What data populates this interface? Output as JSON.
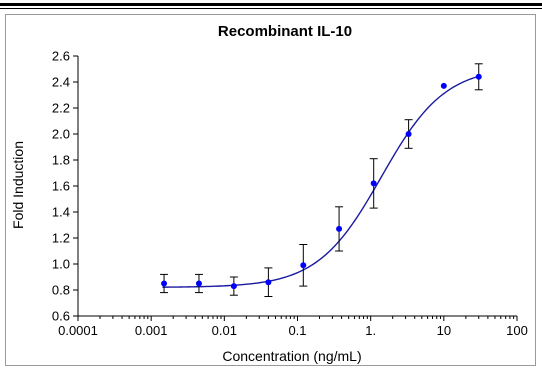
{
  "chart_data": {
    "type": "scatter",
    "title": "Recombinant IL-10",
    "xlabel": "Concentration (ng/mL)",
    "ylabel": "Fold Induction",
    "xscale": "log",
    "xlim": [
      0.0001,
      100
    ],
    "ylim": [
      0.6,
      2.6
    ],
    "xticks": [
      0.0001,
      0.001,
      0.01,
      0.1,
      1,
      10,
      100
    ],
    "xtick_labels": [
      "0.0001",
      "0.001",
      "0.01",
      "0.1",
      "1.",
      "10",
      "100"
    ],
    "yticks": [
      0.6,
      0.8,
      1.0,
      1.2,
      1.4,
      1.6,
      1.8,
      2.0,
      2.2,
      2.4,
      2.6
    ],
    "ytick_labels": [
      "0.6",
      "0.8",
      "1.0",
      "1.2",
      "1.4",
      "1.6",
      "1.8",
      "2.0",
      "2.2",
      "2.4",
      "2.6"
    ],
    "grid": false,
    "legend": "none",
    "series": [
      {
        "x": [
          0.0015,
          0.0045,
          0.0135,
          0.04,
          0.12,
          0.37,
          1.1,
          3.3,
          10,
          30
        ],
        "y": [
          0.85,
          0.85,
          0.83,
          0.86,
          0.99,
          1.27,
          1.62,
          2.0,
          2.37,
          2.44
        ],
        "error": [
          0.07,
          0.07,
          0.07,
          0.11,
          0.16,
          0.17,
          0.19,
          0.11,
          0,
          0.1
        ],
        "color": "#0000ff",
        "fit": {
          "model": "4PL",
          "bottom": 0.82,
          "top": 2.52,
          "ec50": 1.4,
          "hill": 1.0,
          "color": "#1a1aa0"
        }
      }
    ]
  }
}
